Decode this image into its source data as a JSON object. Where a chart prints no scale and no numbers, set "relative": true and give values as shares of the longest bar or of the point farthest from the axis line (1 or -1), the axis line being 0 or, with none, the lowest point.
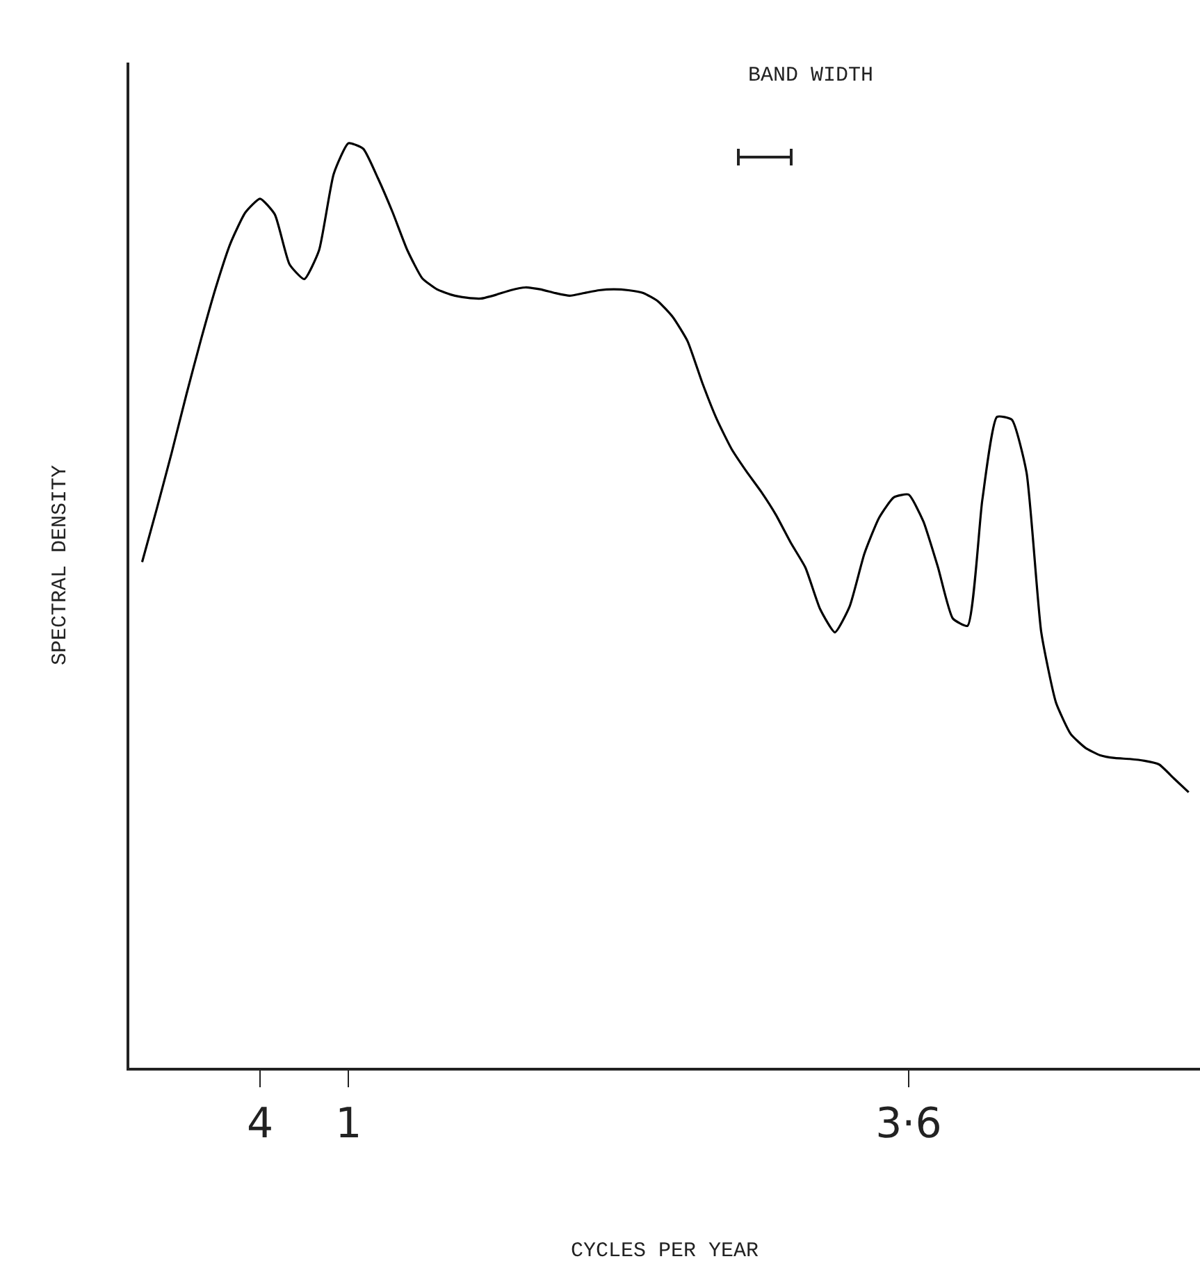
{
  "chart_data": {
    "type": "line",
    "relative": true,
    "xlabel": "CYCLES PER YEAR",
    "ylabel": "SPECTRAL DENSITY",
    "categories": [
      null,
      null,
      null,
      null,
      null,
      null,
      null,
      null,
      "4",
      null,
      null,
      null,
      null,
      null,
      "1",
      null,
      null,
      null,
      null,
      null,
      null,
      null,
      null,
      null,
      null,
      null,
      null,
      null,
      null,
      null,
      null,
      null,
      null,
      null,
      null,
      null,
      null,
      null,
      null,
      null,
      null,
      null,
      null,
      null,
      null,
      null,
      null,
      null,
      null,
      null,
      null,
      null,
      "3·6",
      null,
      null,
      null,
      null,
      null,
      null,
      null,
      null,
      null,
      null,
      null,
      null,
      null,
      null,
      null,
      null,
      null,
      null,
      null
    ],
    "annotations": [
      "BAND WIDTH"
    ],
    "grid": false,
    "marker": "none",
    "line_style": "solid",
    "series": [
      {
        "color": "#000000",
        "values": [
          0.547,
          0.605,
          0.665,
          0.728,
          0.788,
          0.844,
          0.892,
          0.925,
          0.94,
          0.923,
          0.869,
          0.853,
          0.884,
          0.967,
          1.0,
          0.994,
          0.962,
          0.925,
          0.884,
          0.854,
          0.842,
          0.836,
          0.833,
          0.832,
          0.836,
          0.841,
          0.844,
          0.842,
          0.838,
          0.835,
          0.838,
          0.841,
          0.842,
          0.841,
          0.838,
          0.829,
          0.812,
          0.786,
          0.741,
          0.701,
          0.669,
          0.645,
          0.623,
          0.598,
          0.568,
          0.541,
          0.496,
          0.471,
          0.499,
          0.556,
          0.595,
          0.617,
          0.62,
          0.591,
          0.541,
          0.486,
          0.478,
          0.614,
          0.704,
          0.701,
          0.644,
          0.471,
          0.395,
          0.361,
          0.346,
          0.338,
          0.335,
          0.334,
          0.332,
          0.328,
          0.313,
          0.298
        ]
      }
    ]
  }
}
